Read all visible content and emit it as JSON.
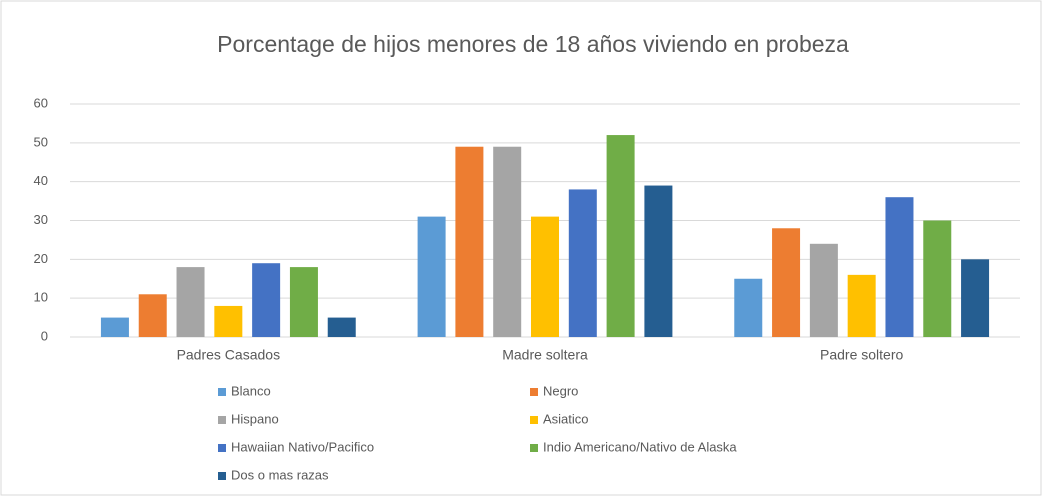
{
  "chart_data": {
    "type": "bar",
    "title": "Porcentage de hijos menores de 18 años viviendo en probeza",
    "categories": [
      "Padres Casados",
      "Madre soltera",
      "Padre soltero"
    ],
    "series": [
      {
        "name": "Blanco",
        "color": "#5b9bd5",
        "values": [
          5,
          31,
          15
        ]
      },
      {
        "name": "Negro",
        "color": "#ed7d31",
        "values": [
          11,
          49,
          28
        ]
      },
      {
        "name": "Hispano",
        "color": "#a5a5a5",
        "values": [
          18,
          49,
          24
        ]
      },
      {
        "name": "Asiatico",
        "color": "#ffc000",
        "values": [
          8,
          31,
          16
        ]
      },
      {
        "name": "Hawaiian Nativo/Pacifico",
        "color": "#4472c4",
        "values": [
          19,
          38,
          36
        ]
      },
      {
        "name": "Indio Americano/Nativo de Alaska",
        "color": "#70ad47",
        "values": [
          18,
          52,
          30
        ]
      },
      {
        "name": "Dos o mas razas",
        "color": "#255e91",
        "values": [
          5,
          39,
          20
        ]
      }
    ],
    "ylim": [
      0,
      60
    ],
    "yticks": [
      0,
      10,
      20,
      30,
      40,
      50,
      60
    ],
    "grid": true,
    "legend": "bottom"
  }
}
